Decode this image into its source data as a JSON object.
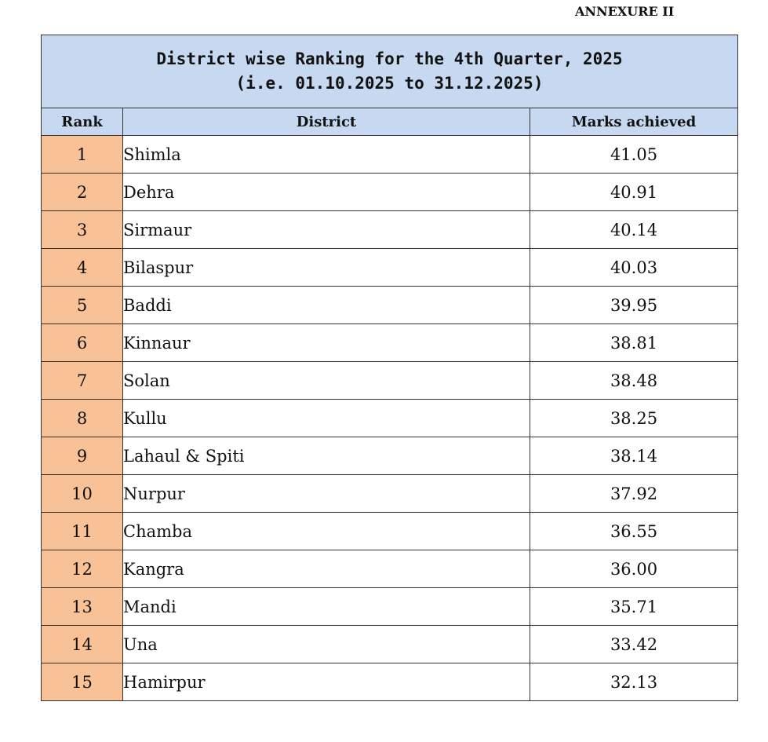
{
  "annexure": "ANNEXURE II",
  "title": {
    "line1": "District wise Ranking for the 4th Quarter, 2025",
    "line2": "(i.e. 01.10.2025 to 31.12.2025)"
  },
  "headers": {
    "rank": "Rank",
    "district": "District",
    "marks": "Marks achieved"
  },
  "rows": [
    {
      "rank": "1",
      "district": "Shimla",
      "marks": "41.05"
    },
    {
      "rank": "2",
      "district": "Dehra",
      "marks": "40.91"
    },
    {
      "rank": "3",
      "district": "Sirmaur",
      "marks": "40.14"
    },
    {
      "rank": "4",
      "district": "Bilaspur",
      "marks": "40.03"
    },
    {
      "rank": "5",
      "district": "Baddi",
      "marks": "39.95"
    },
    {
      "rank": "6",
      "district": "Kinnaur",
      "marks": "38.81"
    },
    {
      "rank": "7",
      "district": "Solan",
      "marks": "38.48"
    },
    {
      "rank": "8",
      "district": "Kullu",
      "marks": "38.25"
    },
    {
      "rank": "9",
      "district": "Lahaul & Spiti",
      "marks": "38.14"
    },
    {
      "rank": "10",
      "district": "Nurpur",
      "marks": "37.92"
    },
    {
      "rank": "11",
      "district": "Chamba",
      "marks": "36.55"
    },
    {
      "rank": "12",
      "district": "Kangra",
      "marks": "36.00"
    },
    {
      "rank": "13",
      "district": "Mandi",
      "marks": "35.71"
    },
    {
      "rank": "14",
      "district": "Una",
      "marks": "33.42"
    },
    {
      "rank": "15",
      "district": "Hamirpur",
      "marks": "32.13"
    }
  ],
  "colors": {
    "header_bg": "#c7d9f1",
    "rank_bg": "#f9c296",
    "border": "#333333"
  }
}
